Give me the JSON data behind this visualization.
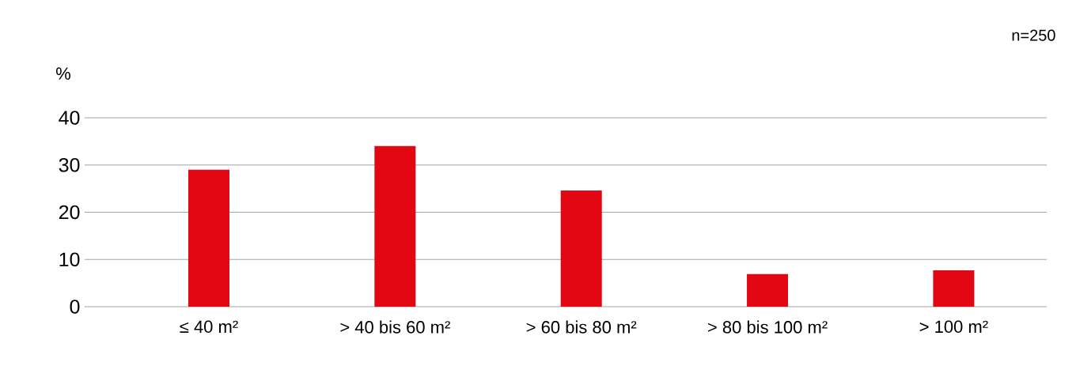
{
  "chart_data": {
    "type": "bar",
    "ylabel": "%",
    "categories": [
      "≤ 40 m²",
      "> 40 bis 60 m²",
      "> 60 bis 80 m²",
      "> 80 bis 100 m²",
      "> 100 m²"
    ],
    "values": [
      29.0,
      34.0,
      24.6,
      6.9,
      7.7
    ],
    "color": "#e30613",
    "ylim": [
      0,
      40
    ],
    "yticks": [
      0,
      10,
      20,
      30,
      40
    ],
    "grid": "y",
    "annotations": [
      "n=250"
    ]
  }
}
